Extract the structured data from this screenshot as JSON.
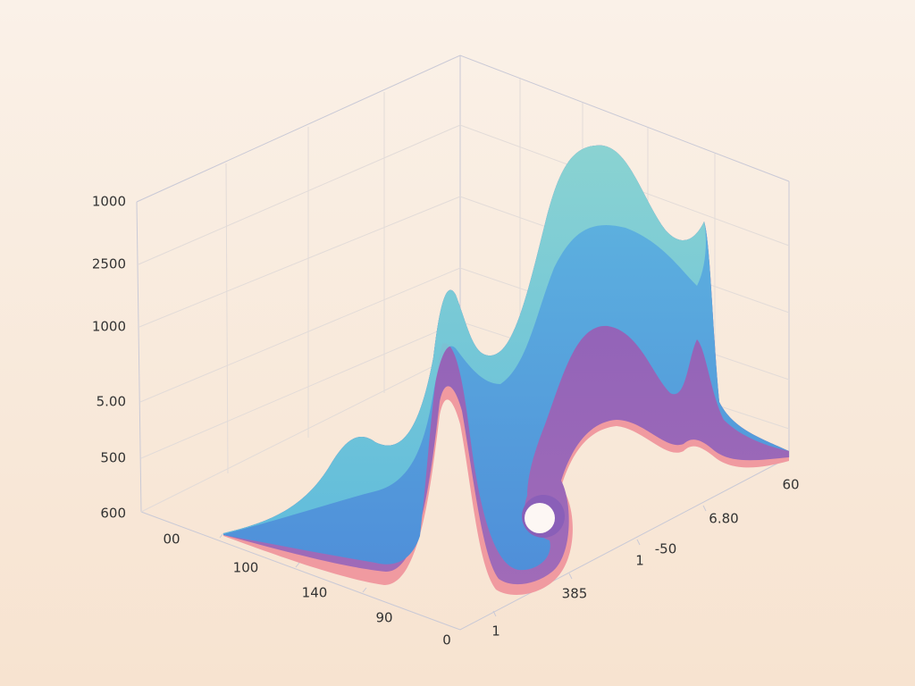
{
  "z_axis_labels": [
    "1000",
    "2500",
    "1000",
    "5.00",
    "500",
    "600"
  ],
  "x_axis_labels": [
    "00",
    "100",
    "140",
    "90",
    "0"
  ],
  "y_axis_labels": [
    "1",
    "385",
    "1",
    "-50",
    "6.80",
    "60"
  ]
}
